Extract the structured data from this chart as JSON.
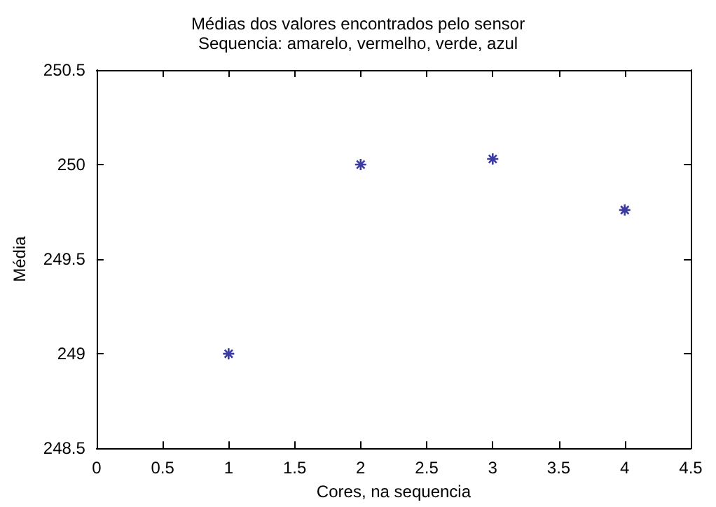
{
  "chart_data": {
    "type": "scatter",
    "title": "Médias dos valores encontrados pelo sensor",
    "subtitle": "Sequencia: amarelo, vermelho, verde, azul",
    "xlabel": "Cores, na sequencia",
    "ylabel": "Média",
    "x": [
      1,
      2,
      3,
      4
    ],
    "series": [
      {
        "color": "#0a0a8a",
        "values": [
          249.0,
          250.0,
          250.03,
          249.76
        ]
      }
    ],
    "xlim": [
      0,
      4.5
    ],
    "xticks": [
      0,
      0.5,
      1,
      1.5,
      2,
      2.5,
      3,
      3.5,
      4,
      4.5
    ],
    "ylim": [
      248.5,
      250.5
    ],
    "yticks": [
      248.5,
      249,
      249.5,
      250,
      250.5
    ],
    "grid": false,
    "marker": "cross"
  }
}
